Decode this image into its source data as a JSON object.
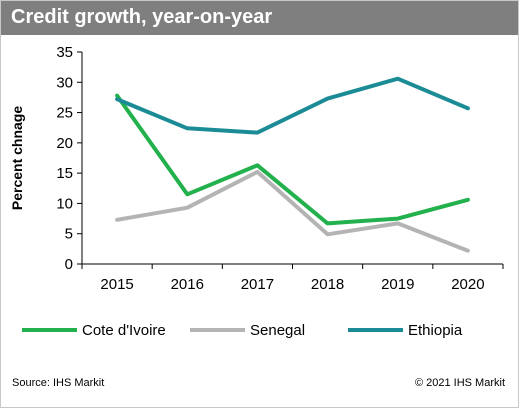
{
  "header": {
    "title": "Credit growth, year-on-year"
  },
  "footer": {
    "source": "Source: IHS Markit",
    "copyright": "© 2021 IHS Markit"
  },
  "chart_data": {
    "type": "line",
    "title": "Credit growth, year-on-year",
    "xlabel": "",
    "ylabel": "Percent chnage",
    "ylim": [
      0,
      35
    ],
    "yticks": [
      0,
      5,
      10,
      15,
      20,
      25,
      30,
      35
    ],
    "grid": false,
    "legend_position": "bottom",
    "categories": [
      "2015",
      "2016",
      "2017",
      "2018",
      "2019",
      "2020"
    ],
    "series": [
      {
        "name": "Cote d'Ivoire",
        "color": "#22b14c",
        "values": [
          27.8,
          11.5,
          16.3,
          6.7,
          7.5,
          10.6
        ]
      },
      {
        "name": "Senegal",
        "color": "#b4b4b4",
        "values": [
          7.3,
          9.3,
          15.2,
          4.9,
          6.7,
          2.2
        ]
      },
      {
        "name": "Ethiopia",
        "color": "#1b8c96",
        "values": [
          27.2,
          22.4,
          21.7,
          27.3,
          30.6,
          25.7
        ]
      }
    ]
  }
}
